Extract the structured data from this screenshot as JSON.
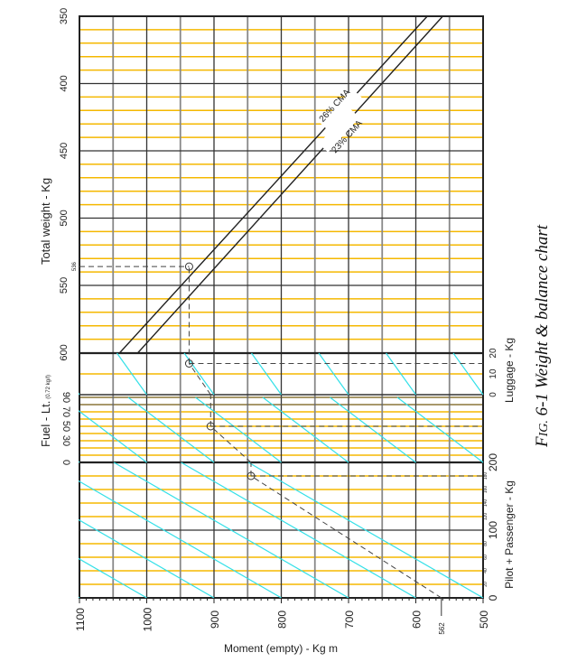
{
  "chart_data": {
    "type": "line",
    "title": "FIG. 6-1 Weight & balance chart",
    "title_prefix": "F",
    "title_smallcaps": "IG.",
    "title_rest": " 6-1 Weight & balance chart",
    "xlabel": "Moment (empty) - Kg m",
    "ylabel": "Total weight - Kg",
    "fuel_label": "Fuel - Lt.",
    "fuel_label_small": "(0.72 kg/l)",
    "luggage_label": "Luggage - Kg",
    "pilot_label": "Pilot + Passenger - Kg",
    "xlim": [
      1100,
      500
    ],
    "ylim_weight": [
      350,
      600
    ],
    "x_ticks": [
      "1100",
      "1000",
      "900",
      "800",
      "700",
      "600",
      "500"
    ],
    "x_tick_values": [
      1100,
      1000,
      900,
      800,
      700,
      600,
      500
    ],
    "weight_ticks": [
      "350",
      "400",
      "450",
      "500",
      "550",
      "600"
    ],
    "weight_tick_values": [
      350,
      400,
      450,
      500,
      550,
      600
    ],
    "fuel_ticks": [
      "0",
      "30",
      "50",
      "70",
      "90"
    ],
    "fuel_tick_values": [
      0,
      30,
      50,
      70,
      90
    ],
    "luggage_ticks": [
      "0",
      "10",
      "20"
    ],
    "luggage_tick_values": [
      0,
      10,
      20
    ],
    "pilot_ticks_major": [
      "0",
      "100",
      "200"
    ],
    "pilot_tick_major_values": [
      0,
      100,
      200
    ],
    "pilot_ticks_minor": [
      "20",
      "40",
      "60",
      "80",
      "120",
      "140",
      "160",
      "180"
    ],
    "pilot_tick_minor_values": [
      20,
      40,
      60,
      80,
      120,
      140,
      160,
      180
    ],
    "cma_lines": [
      {
        "name": "26% CMA",
        "points": [
          [
            1040,
            600
          ],
          [
            583,
            350
          ]
        ]
      },
      {
        "name": "23% CMA",
        "points": [
          [
            1013,
            600
          ],
          [
            560,
            350
          ]
        ]
      }
    ],
    "example": {
      "empty_moment": "562",
      "empty_moment_value": 562,
      "pilot_passenger": 180,
      "moment_after_pilot": 845,
      "fuel": 50,
      "moment_after_fuel": 905,
      "luggage": 15,
      "moment_after_luggage": 937,
      "total_weight": "536",
      "total_weight_value": 536
    },
    "colors": {
      "grid_minor": "#f5b800",
      "reference": "#33e0e8",
      "grid_major": "#333333",
      "path": "#444444"
    }
  }
}
